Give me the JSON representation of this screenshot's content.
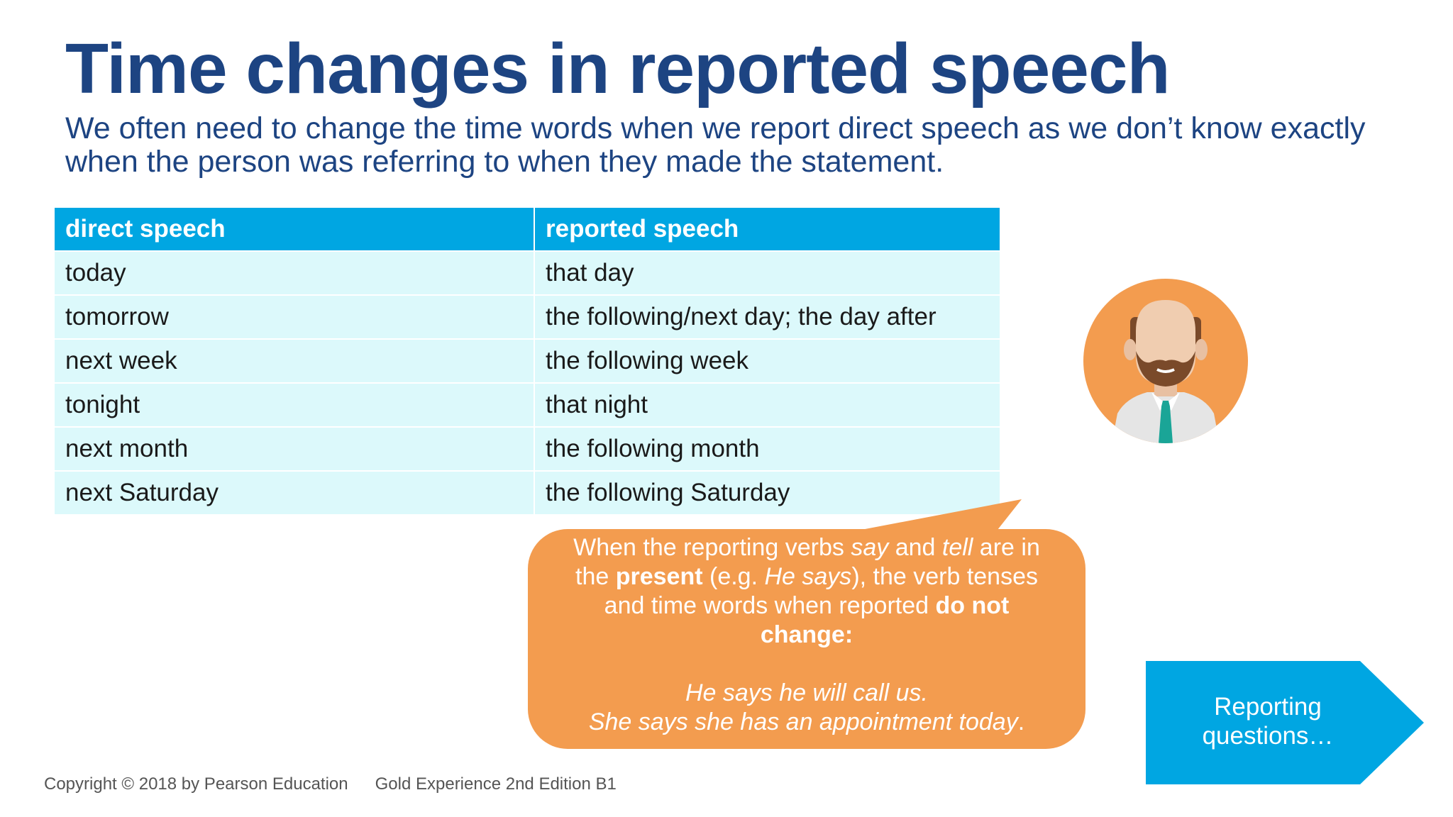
{
  "title": "Time changes in reported speech",
  "intro": "We often need to change the time words when we report direct speech as we don’t know exactly when the person was referring to when they made the statement.",
  "table": {
    "headers": [
      "direct speech",
      "reported speech"
    ],
    "rows": [
      [
        "today",
        "that day"
      ],
      [
        "tomorrow",
        "the following/next day; the day after"
      ],
      [
        "next week",
        "the following week"
      ],
      [
        "tonight",
        "that night"
      ],
      [
        "next month",
        "the following month"
      ],
      [
        "next Saturday",
        "the following Saturday"
      ]
    ]
  },
  "callout": {
    "t1": "When the reporting verbs ",
    "say": "say",
    "t2": " and ",
    "tell": "tell",
    "t3": " are in the ",
    "present": "present",
    "t4": " (e.g. ",
    "he_says": "He says",
    "t5": "), the verb tenses and time words when reported ",
    "do_not_change": "do not change:",
    "example1": "He says he will call us.",
    "example2_italic": "She says she has an appointment today",
    "example2_end": "."
  },
  "next_button": {
    "line1": "Reporting",
    "line2": "questions…"
  },
  "footer": {
    "copyright": "Copyright © 2018 by Pearson Education",
    "book": "Gold Experience 2nd Edition B1"
  },
  "colors": {
    "title": "#1d4482",
    "table_header": "#00a6e2",
    "table_row": "#dcf9fb",
    "callout": "#f39c4f",
    "arrow": "#00a6e2"
  },
  "icons": {
    "avatar": "bald-bearded-man-avatar-icon"
  }
}
